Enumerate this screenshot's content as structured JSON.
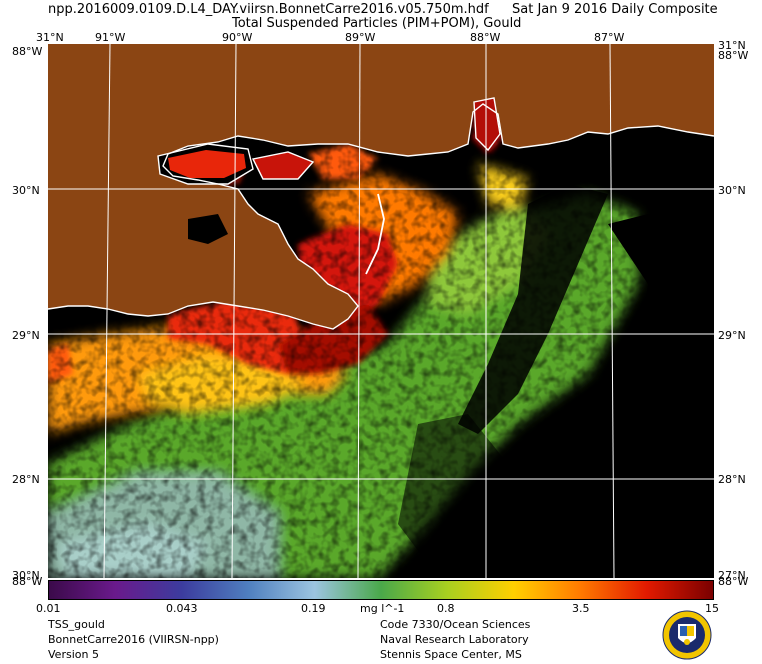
{
  "header": {
    "filename": "npp.2016009.0109.D.L4_DAY.viirsn.BonnetCarre2016.v05.750m.hdf",
    "date": "Sat Jan  9 2016 Daily Composite",
    "product": "Total Suspended Particles (PIM+POM), Gould"
  },
  "map": {
    "lon_labels": [
      "91°W",
      "90°W",
      "89°W",
      "88°W",
      "87°W"
    ],
    "lat_labels": [
      "31°N",
      "30°N",
      "29°N",
      "28°N",
      "27°N"
    ],
    "corner_top_left_lat": "31°N",
    "corner_top_left_lon": "88°W",
    "corner_top_right_lat": "31°N",
    "corner_top_right_lon": "88°W",
    "corner_bottom_left_lat": "30°N",
    "corner_bottom_left_lon": "88°W",
    "corner_bottom_right_lat": "27°N",
    "corner_bottom_right_lon": "88°W",
    "colors": {
      "land": "#8b4513",
      "nodata": "#000000",
      "coast": "#ffffff",
      "grid": "#ffffff"
    }
  },
  "colorbar": {
    "ticks": [
      "0.01",
      "0.043",
      "0.19",
      "0.8",
      "3.5",
      "15"
    ],
    "units": "mg l^-1",
    "colors": [
      "#3b0a4a",
      "#6a1a8c",
      "#3c3c9e",
      "#4f7fbf",
      "#9cc4e0",
      "#4aa84a",
      "#a8d020",
      "#ffd000",
      "#ff7a00",
      "#e21a00",
      "#7a0000"
    ]
  },
  "footer": {
    "left": [
      "TSS_gould",
      "BonnetCarre2016 (VIIRSN-npp)",
      "Version 5"
    ],
    "right": [
      "Code 7330/Ocean Sciences",
      "Naval Research Laboratory",
      "Stennis Space Center, MS"
    ]
  }
}
